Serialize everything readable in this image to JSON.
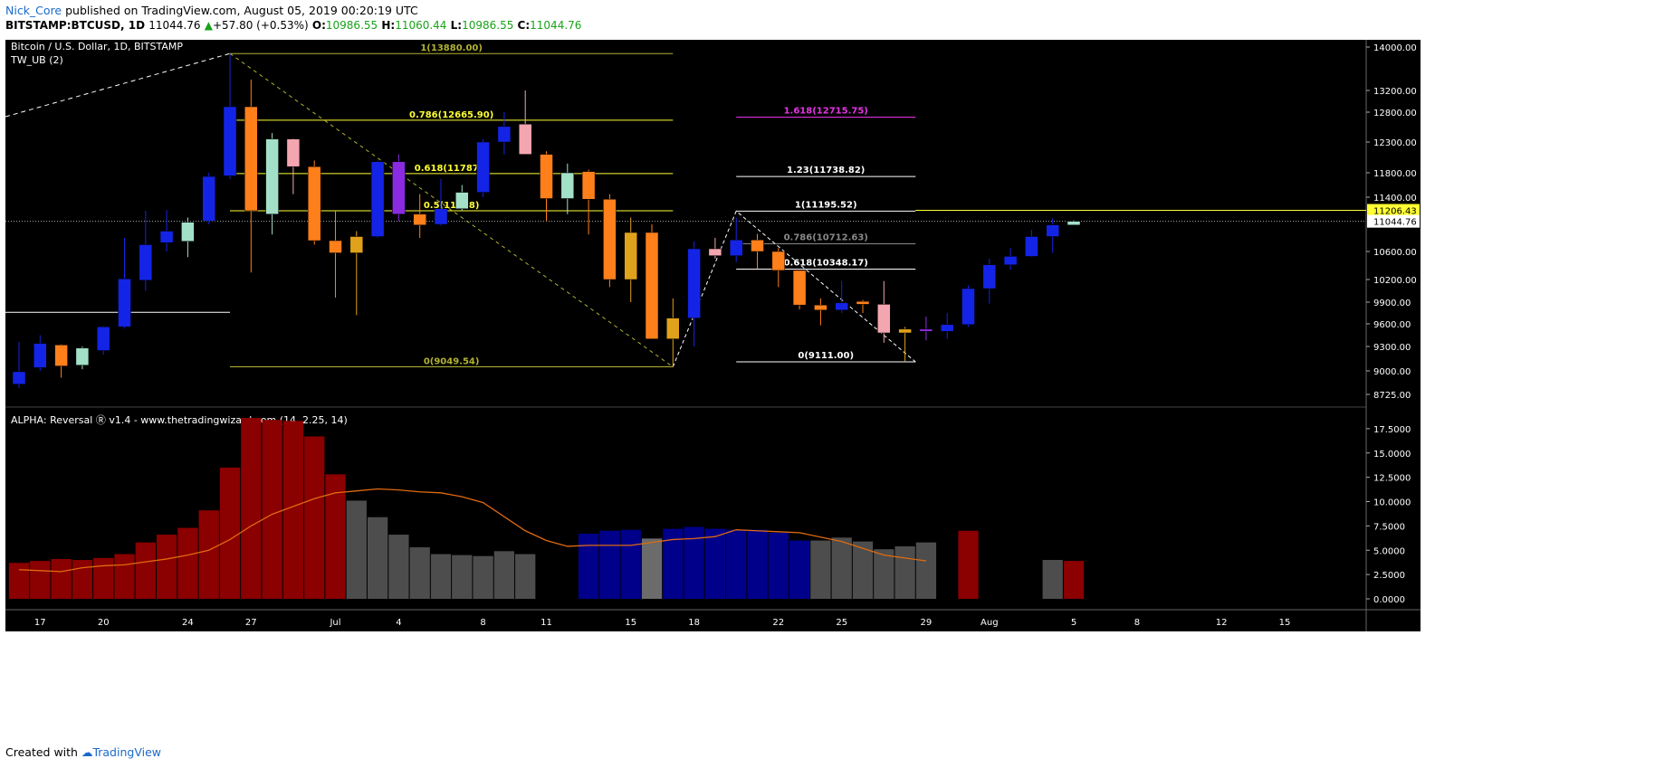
{
  "header": {
    "author": "Nick_Core",
    "published_text": "published on TradingView.com, August 05, 2019 00:20:19 UTC"
  },
  "ticker_row": {
    "symbol": "BITSTAMP:BTCUSD, 1D",
    "last": "11044.76",
    "change": "+57.80 (+0.53%)",
    "o_label": "O:",
    "o": "10986.55",
    "h_label": "H:",
    "h": "11060.44",
    "l_label": "L:",
    "l": "10986.55",
    "c_label": "C:",
    "c": "11044.76"
  },
  "footer": {
    "created_with": "Created with",
    "brand": "TradingView"
  },
  "colors": {
    "background": "#000000",
    "bull_blue": "#1424e6",
    "bear_orange": "#ff7f1a",
    "mint": "#a3e0c8",
    "pink": "#f4a6b0",
    "gold": "#e0a21a",
    "purple": "#8a2be2",
    "fib_yellow": "#ffff33",
    "fib_olive": "#b2b233",
    "ext_magenta": "#e633e6",
    "hist_red": "#8b0000",
    "hist_gray": "#4d4d4d",
    "hist_blue": "#00008b",
    "signal_line": "#e06a10"
  },
  "chart_data": [
    {
      "type": "candlestick",
      "title": "Bitcoin / U.S. Dollar, 1D, BITSTAMP",
      "indicator_label": "TW_UB (2)",
      "y_ticks": [
        14000,
        13200,
        12800,
        12300,
        11800,
        11400,
        10600,
        10200,
        9900,
        9600,
        9300,
        9000,
        8725
      ],
      "ylim": [
        8600,
        14100
      ],
      "x_tick_labels": [
        "17",
        "20",
        "24",
        "27",
        "Jul",
        "4",
        "8",
        "11",
        "15",
        "18",
        "22",
        "25",
        "29",
        "Aug",
        "5",
        "8",
        "12",
        "15"
      ],
      "price_tags": [
        {
          "value": "11206.43",
          "color": "#ffff33"
        },
        {
          "value": "11044.76",
          "color": "#ffffff"
        }
      ],
      "candles": [
        {
          "date": "Jun 16",
          "o": 8845,
          "h": 9360,
          "l": 8800,
          "c": 8990,
          "color": "bull_blue"
        },
        {
          "date": "Jun 17",
          "o": 9040,
          "h": 9450,
          "l": 9000,
          "c": 9340,
          "color": "bull_blue"
        },
        {
          "date": "Jun 18",
          "o": 9320,
          "h": 9330,
          "l": 8920,
          "c": 9060,
          "color": "bear_orange"
        },
        {
          "date": "Jun 19",
          "o": 9070,
          "h": 9300,
          "l": 9020,
          "c": 9280,
          "color": "mint"
        },
        {
          "date": "Jun 20",
          "o": 9250,
          "h": 9570,
          "l": 9200,
          "c": 9560,
          "color": "bull_blue"
        },
        {
          "date": "Jun 21",
          "o": 9560,
          "h": 10800,
          "l": 9540,
          "c": 10210,
          "color": "bull_blue"
        },
        {
          "date": "Jun 22",
          "o": 10190,
          "h": 11200,
          "l": 10050,
          "c": 10700,
          "color": "bull_blue"
        },
        {
          "date": "Jun 23",
          "o": 10730,
          "h": 11210,
          "l": 10600,
          "c": 10900,
          "color": "bull_blue"
        },
        {
          "date": "Jun 24",
          "o": 10750,
          "h": 11100,
          "l": 10520,
          "c": 11030,
          "color": "mint"
        },
        {
          "date": "Jun 25",
          "o": 11050,
          "h": 11800,
          "l": 11000,
          "c": 11740,
          "color": "bull_blue"
        },
        {
          "date": "Jun 26",
          "o": 11750,
          "h": 13880,
          "l": 11700,
          "c": 12900,
          "color": "bull_blue"
        },
        {
          "date": "Jun 27",
          "o": 12900,
          "h": 13400,
          "l": 10300,
          "c": 11200,
          "color": "bear_orange"
        },
        {
          "date": "Jun 28",
          "o": 11150,
          "h": 12450,
          "l": 10850,
          "c": 12350,
          "color": "mint"
        },
        {
          "date": "Jun 29",
          "o": 12350,
          "h": 12360,
          "l": 11450,
          "c": 11900,
          "color": "pink"
        },
        {
          "date": "Jun 30",
          "o": 11900,
          "h": 12000,
          "l": 10700,
          "c": 10760,
          "color": "bear_orange"
        },
        {
          "date": "Jul 1",
          "o": 10760,
          "h": 11200,
          "l": 9960,
          "c": 10580,
          "color": "bear_orange"
        },
        {
          "date": "Jul 2",
          "o": 10580,
          "h": 10900,
          "l": 9720,
          "c": 10820,
          "color": "gold"
        },
        {
          "date": "Jul 3",
          "o": 10820,
          "h": 12000,
          "l": 10800,
          "c": 11980,
          "color": "bull_blue"
        },
        {
          "date": "Jul 4",
          "o": 11980,
          "h": 12100,
          "l": 11050,
          "c": 11150,
          "color": "purple"
        },
        {
          "date": "Jul 5",
          "o": 11150,
          "h": 11450,
          "l": 10800,
          "c": 10990,
          "color": "bear_orange"
        },
        {
          "date": "Jul 6",
          "o": 11000,
          "h": 11700,
          "l": 10980,
          "c": 11230,
          "color": "bull_blue"
        },
        {
          "date": "Jul 7",
          "o": 11230,
          "h": 11600,
          "l": 11200,
          "c": 11480,
          "color": "mint"
        },
        {
          "date": "Jul 8",
          "o": 11480,
          "h": 12350,
          "l": 11400,
          "c": 12300,
          "color": "bull_blue"
        },
        {
          "date": "Jul 9",
          "o": 12300,
          "h": 12800,
          "l": 12100,
          "c": 12560,
          "color": "bull_blue"
        },
        {
          "date": "Jul 10",
          "o": 12600,
          "h": 13200,
          "l": 12100,
          "c": 12100,
          "color": "pink"
        },
        {
          "date": "Jul 11",
          "o": 12100,
          "h": 12150,
          "l": 11050,
          "c": 11380,
          "color": "bear_orange"
        },
        {
          "date": "Jul 12",
          "o": 11380,
          "h": 11950,
          "l": 11150,
          "c": 11800,
          "color": "mint"
        },
        {
          "date": "Jul 13",
          "o": 11820,
          "h": 11850,
          "l": 10850,
          "c": 11370,
          "color": "bear_orange"
        },
        {
          "date": "Jul 14",
          "o": 11370,
          "h": 11450,
          "l": 10100,
          "c": 10200,
          "color": "bear_orange"
        },
        {
          "date": "Jul 15",
          "o": 10200,
          "h": 11100,
          "l": 9900,
          "c": 10880,
          "color": "gold"
        },
        {
          "date": "Jul 16",
          "o": 10880,
          "h": 11000,
          "l": 9400,
          "c": 9400,
          "color": "bear_orange"
        },
        {
          "date": "Jul 17",
          "o": 9400,
          "h": 9950,
          "l": 9050,
          "c": 9680,
          "color": "gold"
        },
        {
          "date": "Jul 18",
          "o": 9680,
          "h": 10750,
          "l": 9300,
          "c": 10640,
          "color": "bull_blue"
        },
        {
          "date": "Jul 19",
          "o": 10640,
          "h": 10800,
          "l": 10500,
          "c": 10540,
          "color": "pink"
        },
        {
          "date": "Jul 20",
          "o": 10540,
          "h": 11100,
          "l": 10450,
          "c": 10770,
          "color": "bull_blue"
        },
        {
          "date": "Jul 21",
          "o": 10770,
          "h": 10860,
          "l": 10350,
          "c": 10600,
          "color": "bear_orange"
        },
        {
          "date": "Jul 22",
          "o": 10600,
          "h": 10650,
          "l": 10100,
          "c": 10330,
          "color": "bear_orange"
        },
        {
          "date": "Jul 23",
          "o": 10330,
          "h": 10330,
          "l": 9800,
          "c": 9860,
          "color": "bear_orange"
        },
        {
          "date": "Jul 24",
          "o": 9860,
          "h": 9950,
          "l": 9580,
          "c": 9790,
          "color": "bear_orange"
        },
        {
          "date": "Jul 25",
          "o": 9790,
          "h": 10180,
          "l": 9750,
          "c": 9890,
          "color": "bull_blue"
        },
        {
          "date": "Jul 26",
          "o": 9910,
          "h": 9930,
          "l": 9750,
          "c": 9870,
          "color": "bear_orange"
        },
        {
          "date": "Jul 27",
          "o": 9870,
          "h": 10180,
          "l": 9350,
          "c": 9480,
          "color": "pink"
        },
        {
          "date": "Jul 28",
          "o": 9480,
          "h": 9560,
          "l": 9120,
          "c": 9530,
          "color": "gold"
        },
        {
          "date": "Jul 29",
          "o": 9530,
          "h": 9700,
          "l": 9380,
          "c": 9500,
          "color": "purple"
        },
        {
          "date": "Jul 30",
          "o": 9500,
          "h": 9750,
          "l": 9400,
          "c": 9590,
          "color": "bull_blue"
        },
        {
          "date": "Jul 31",
          "o": 9590,
          "h": 10120,
          "l": 9560,
          "c": 10080,
          "color": "bull_blue"
        },
        {
          "date": "Aug 1",
          "o": 10080,
          "h": 10500,
          "l": 9880,
          "c": 10410,
          "color": "bull_blue"
        },
        {
          "date": "Aug 2",
          "o": 10410,
          "h": 10650,
          "l": 10340,
          "c": 10530,
          "color": "bull_blue"
        },
        {
          "date": "Aug 3",
          "o": 10530,
          "h": 10920,
          "l": 10520,
          "c": 10820,
          "color": "bull_blue"
        },
        {
          "date": "Aug 4",
          "o": 10820,
          "h": 11090,
          "l": 10580,
          "c": 10990,
          "color": "bull_blue"
        },
        {
          "date": "Aug 5",
          "o": 10990,
          "h": 11060,
          "l": 10986,
          "c": 11044,
          "color": "mint"
        }
      ],
      "fib_retracement": {
        "levels": [
          {
            "label": "1(13880.00)",
            "value": 13880,
            "color": "fib_olive"
          },
          {
            "label": "0.786(12665.90)",
            "value": 12665.9,
            "color": "fib_yellow"
          },
          {
            "label": "0.618(11787.6",
            "value": 11787.6,
            "color": "fib_yellow"
          },
          {
            "label": "0.5(1120",
            "suffix": "8)",
            "value": 11200,
            "color": "fib_yellow"
          },
          {
            "label": "0(9049.54)",
            "value": 9049.54,
            "color": "fib_olive"
          }
        ]
      },
      "fib_extension": {
        "levels": [
          {
            "label": "1.618(12715.75)",
            "value": 12715.75,
            "color": "ext_magenta"
          },
          {
            "label": "1.23(11738.82)",
            "value": 11738.82,
            "color": "white"
          },
          {
            "label": "1(11195.52)",
            "value": 11195.52,
            "color": "white"
          },
          {
            "label": "0.786(10712.63)",
            "value": 10712.63,
            "color": "gray"
          },
          {
            "label": "0.618(10348.17)",
            "value": 10348.17,
            "color": "white"
          },
          {
            "label": "0(9111.00)",
            "value": 9111.0,
            "color": "white"
          }
        ]
      },
      "horizontal_line_value": 9760
    },
    {
      "type": "bar",
      "title": "ALPHA: Reversal Ⓡ v1.4 - www.thetradingwizard.com (14, 2.25, 14)",
      "y_ticks": [
        "17.5000",
        "15.0000",
        "12.5000",
        "10.0000",
        "7.5000",
        "5.0000",
        "2.5000",
        "0.0000"
      ],
      "ylim": [
        0,
        18.5
      ],
      "series": [
        {
          "values": [
            3.7,
            3.9,
            4.1,
            4.0,
            4.2,
            4.6,
            5.8,
            6.6,
            7.3,
            9.1,
            13.5,
            18.6,
            18.4,
            18.3,
            16.7,
            12.8,
            10.1,
            8.4,
            6.6,
            5.3,
            4.6,
            4.5,
            4.4,
            4.9,
            4.6,
            null,
            null,
            6.7,
            7.0,
            7.1,
            6.2,
            7.2,
            7.4,
            7.2,
            7.1,
            7.1,
            6.8,
            6.0,
            6.0,
            6.3,
            5.9,
            5.1,
            5.4,
            5.8,
            null,
            7.0,
            null,
            null,
            null,
            4.0,
            3.9
          ]
        },
        {
          "values": [
            3.0,
            2.9,
            2.8,
            3.2,
            3.4,
            3.5,
            3.8,
            4.1,
            4.5,
            5.0,
            6.1,
            7.5,
            8.7,
            9.5,
            10.3,
            10.9,
            11.1,
            11.3,
            11.2,
            11.0,
            10.9,
            10.5,
            9.9,
            null,
            7.0,
            6.0,
            5.4,
            5.5,
            5.5,
            5.5,
            5.8,
            6.1,
            6.2,
            6.4,
            7.1,
            7.0,
            6.9,
            6.8,
            null,
            5.9,
            null,
            4.5,
            4.2,
            3.9
          ]
        }
      ]
    }
  ]
}
